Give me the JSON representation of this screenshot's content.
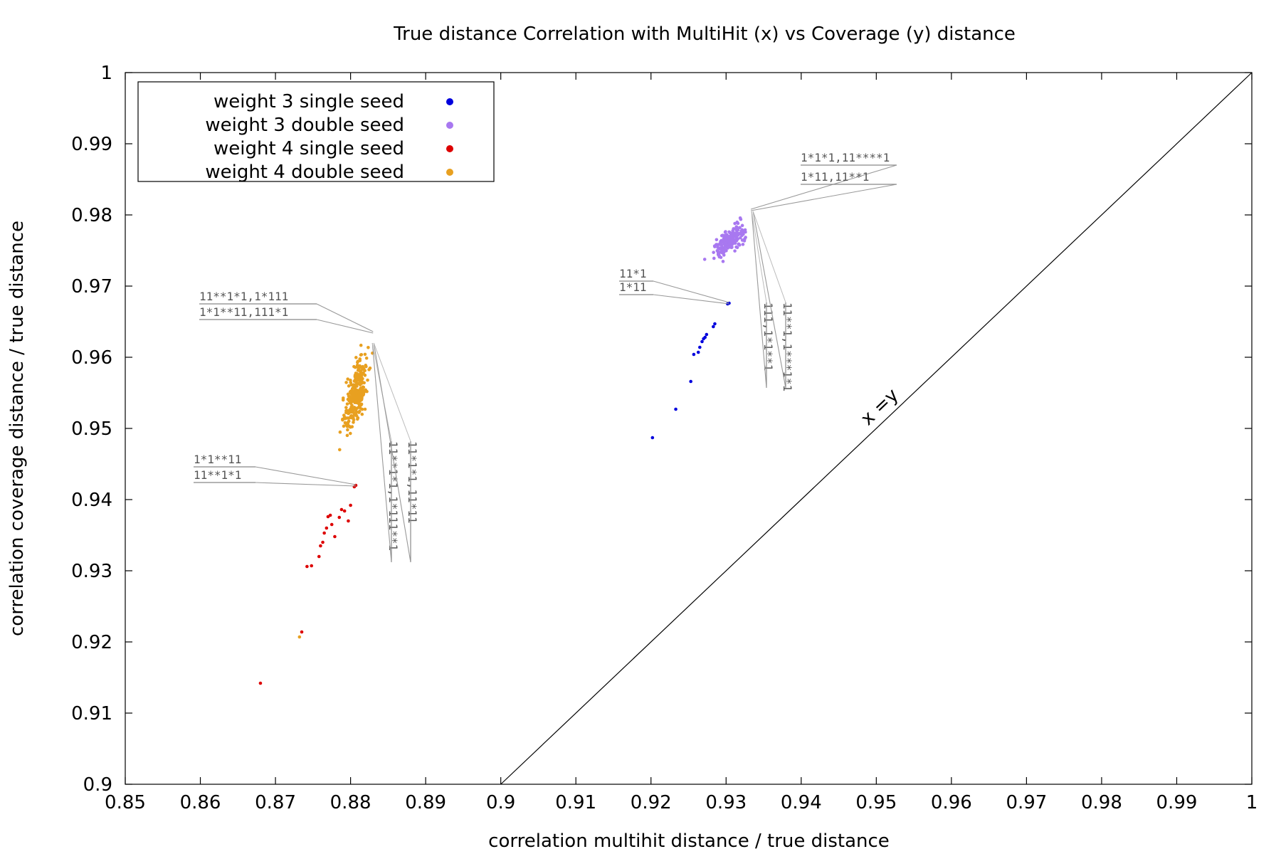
{
  "chart_data": {
    "type": "scatter",
    "title": "True distance Correlation with MultiHit (x) vs Coverage (y) distance",
    "xlabel": "correlation multihit distance / true distance",
    "ylabel": "correlation coverage distance / true distance",
    "xlim": [
      0.85,
      1.0
    ],
    "ylim": [
      0.9,
      1.0
    ],
    "xticks": [
      "0.85",
      "0.86",
      "0.87",
      "0.88",
      "0.89",
      "0.9",
      "0.91",
      "0.92",
      "0.93",
      "0.94",
      "0.95",
      "0.96",
      "0.97",
      "0.98",
      "0.99",
      "1"
    ],
    "yticks": [
      "0.9",
      "0.91",
      "0.92",
      "0.93",
      "0.94",
      "0.95",
      "0.96",
      "0.97",
      "0.98",
      "0.99",
      "1"
    ],
    "grid": false,
    "legend_position": "top-left",
    "reference_line": {
      "label": "x =y",
      "from": [
        0.9,
        0.9
      ],
      "to": [
        1.0,
        1.0
      ]
    },
    "series": [
      {
        "name": "weight 3 single seed",
        "color": "#0000dd",
        "points": [
          [
            0.9202,
            0.9487
          ],
          [
            0.9233,
            0.9527
          ],
          [
            0.9253,
            0.9566
          ],
          [
            0.9257,
            0.9604
          ],
          [
            0.9263,
            0.9607
          ],
          [
            0.9265,
            0.9614
          ],
          [
            0.9268,
            0.9622
          ],
          [
            0.927,
            0.9626
          ],
          [
            0.9272,
            0.9628
          ],
          [
            0.9274,
            0.9632
          ],
          [
            0.9283,
            0.9643
          ],
          [
            0.9285,
            0.9647
          ],
          [
            0.9302,
            0.9675
          ],
          [
            0.9304,
            0.9676
          ]
        ]
      },
      {
        "name": "weight 3 double seed",
        "color": "#a878f0",
        "cluster": {
          "center": [
            0.9305,
            0.9765
          ],
          "trend": [
            0.9275,
            0.972,
            0.9335,
            0.9805
          ],
          "spread": [
            0.0012,
            0.0008
          ],
          "count": 200
        }
      },
      {
        "name": "weight 4 single seed",
        "color": "#dd0000",
        "points": [
          [
            0.868,
            0.9142
          ],
          [
            0.8735,
            0.9214
          ],
          [
            0.8742,
            0.9306
          ],
          [
            0.8748,
            0.9307
          ],
          [
            0.8758,
            0.932
          ],
          [
            0.876,
            0.9335
          ],
          [
            0.8763,
            0.934
          ],
          [
            0.8765,
            0.9353
          ],
          [
            0.8768,
            0.936
          ],
          [
            0.877,
            0.9376
          ],
          [
            0.8773,
            0.9378
          ],
          [
            0.8775,
            0.9365
          ],
          [
            0.8779,
            0.9348
          ],
          [
            0.8785,
            0.9375
          ],
          [
            0.8788,
            0.9386
          ],
          [
            0.8792,
            0.9384
          ],
          [
            0.8797,
            0.937
          ],
          [
            0.88,
            0.9392
          ],
          [
            0.8805,
            0.9418
          ],
          [
            0.8807,
            0.942
          ]
        ]
      },
      {
        "name": "weight 4 double seed",
        "color": "#e8a020",
        "extra_points": [
          [
            0.8732,
            0.9207
          ]
        ],
        "cluster": {
          "center": [
            0.8808,
            0.9565
          ],
          "trend": [
            0.8785,
            0.9465,
            0.883,
            0.9635
          ],
          "spread": [
            0.0009,
            0.0016
          ],
          "count": 300
        }
      }
    ],
    "annotations": [
      {
        "id": "a1",
        "lines": [
          "1*1*1,11****1",
          "1*11,11**1"
        ],
        "orientation": "horizontal",
        "point": [
          0.9333,
          0.9807
        ]
      },
      {
        "id": "a2",
        "lines": [
          "11*1",
          "1*11"
        ],
        "orientation": "horizontal",
        "point": [
          0.9304,
          0.9676
        ]
      },
      {
        "id": "a3",
        "lines": [
          "111,1*1**1",
          "11**1,1***1*1"
        ],
        "orientation": "vertical",
        "point": [
          0.9335,
          0.9805
        ]
      },
      {
        "id": "a4",
        "lines": [
          "11**1*1,1*111",
          "1*1**11,111*1"
        ],
        "orientation": "horizontal",
        "point": [
          0.883,
          0.9635
        ]
      },
      {
        "id": "a5",
        "lines": [
          "11**1*1,1*111**1",
          "11*1*1,11*11"
        ],
        "orientation": "vertical",
        "point": [
          0.883,
          0.962
        ]
      },
      {
        "id": "a6",
        "lines": [
          "1*1**11",
          "11**1*1"
        ],
        "orientation": "horizontal",
        "point": [
          0.8807,
          0.942
        ]
      }
    ]
  }
}
